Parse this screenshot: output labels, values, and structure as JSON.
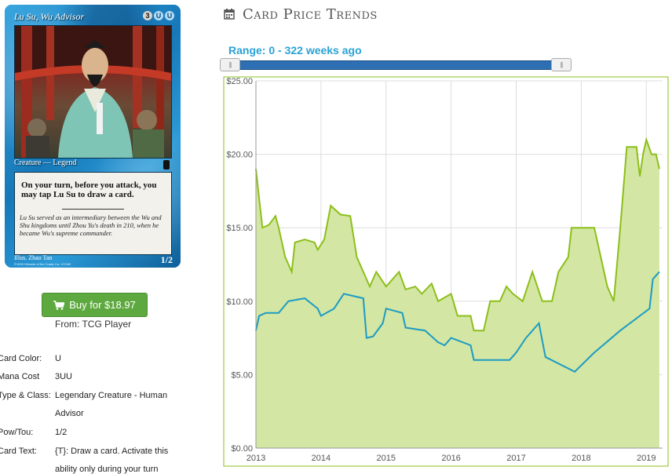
{
  "card": {
    "name": "Lu Su, Wu Advisor",
    "cost": [
      "3",
      "U",
      "U"
    ],
    "type_line": "Creature — Legend",
    "rules_text": "On your turn, before you attack, you may tap Lu Su to draw a card.",
    "flavor_text": "Lu Su served as an intermediary between the Wu and Shu kingdoms until Zhou Yu's death in 210, when he became Wu's supreme commander.",
    "illustrator": "Illus. Zhao Tan",
    "copyright": "©1999 Wizards of the Coast, Inc. 47/180",
    "power_toughness": "1/2"
  },
  "buy": {
    "label": "Buy for $18.97",
    "source": "From: TCG Player"
  },
  "details": [
    {
      "label": "Card Color:",
      "value": "U"
    },
    {
      "label": "Mana Cost",
      "value": "3UU"
    },
    {
      "label": "Type & Class:",
      "value": "Legendary Creature - Human"
    },
    {
      "label": "",
      "value": "Advisor"
    },
    {
      "label": "Pow/Tou:",
      "value": "1/2"
    },
    {
      "label": "Card Text:",
      "value": "{T}: Draw a card. Activate this"
    },
    {
      "label": "",
      "value": "ability only during your turn"
    }
  ],
  "page_title": "Card Price Trends",
  "range": {
    "label": "Range: 0 - 322 weeks ago",
    "handle_glyph": "|||"
  },
  "icons": {
    "title": "calendar-icon",
    "buy": "shopping-cart-icon"
  },
  "colors": {
    "green_line": "#8cbf1a",
    "green_fill": "#d3e6a3",
    "blue_line": "#1c9bc4",
    "button": "#5ea93f",
    "accent": "#2aa3d4"
  },
  "chart_data": {
    "type": "area",
    "x_ticks": [
      "2013",
      "2014",
      "2015",
      "2016",
      "2017",
      "2018",
      "2019"
    ],
    "y_ticks": [
      "$0.00",
      "$5.00",
      "$10.00",
      "$15.00",
      "$20.00",
      "$25.00"
    ],
    "ylim": [
      0,
      25
    ],
    "xlim": [
      2013.0,
      2019.25
    ],
    "grid": true,
    "series": [
      {
        "points": [
          [
            2013.0,
            19.0
          ],
          [
            2013.05,
            17.0
          ],
          [
            2013.1,
            15.0
          ],
          [
            2013.2,
            15.2
          ],
          [
            2013.3,
            15.8
          ],
          [
            2013.35,
            15.0
          ],
          [
            2013.45,
            13.0
          ],
          [
            2013.55,
            12.0
          ],
          [
            2013.6,
            14.0
          ],
          [
            2013.75,
            14.2
          ],
          [
            2013.9,
            14.0
          ],
          [
            2013.95,
            13.5
          ],
          [
            2014.05,
            14.2
          ],
          [
            2014.15,
            16.5
          ],
          [
            2014.3,
            15.9
          ],
          [
            2014.45,
            15.8
          ],
          [
            2014.55,
            13.0
          ],
          [
            2014.65,
            12.0
          ],
          [
            2014.75,
            11.0
          ],
          [
            2014.85,
            12.0
          ],
          [
            2015.0,
            11.0
          ],
          [
            2015.2,
            12.0
          ],
          [
            2015.3,
            10.8
          ],
          [
            2015.45,
            11.0
          ],
          [
            2015.55,
            10.5
          ],
          [
            2015.7,
            11.2
          ],
          [
            2015.8,
            10.0
          ],
          [
            2016.0,
            10.5
          ],
          [
            2016.1,
            9.0
          ],
          [
            2016.3,
            9.0
          ],
          [
            2016.35,
            8.0
          ],
          [
            2016.5,
            8.0
          ],
          [
            2016.6,
            10.0
          ],
          [
            2016.75,
            10.0
          ],
          [
            2016.85,
            11.0
          ],
          [
            2016.95,
            10.5
          ],
          [
            2017.1,
            10.0
          ],
          [
            2017.25,
            12.0
          ],
          [
            2017.4,
            10.0
          ],
          [
            2017.55,
            10.0
          ],
          [
            2017.65,
            12.0
          ],
          [
            2017.8,
            13.0
          ],
          [
            2017.85,
            15.0
          ],
          [
            2018.2,
            15.0
          ],
          [
            2018.3,
            13.0
          ],
          [
            2018.4,
            11.0
          ],
          [
            2018.5,
            10.0
          ],
          [
            2018.6,
            15.0
          ],
          [
            2018.7,
            20.5
          ],
          [
            2018.85,
            20.5
          ],
          [
            2018.9,
            18.5
          ],
          [
            2018.95,
            20.0
          ],
          [
            2019.0,
            21.0
          ],
          [
            2019.08,
            20.0
          ],
          [
            2019.15,
            20.0
          ],
          [
            2019.2,
            19.0
          ]
        ]
      },
      {
        "points": [
          [
            2013.0,
            8.0
          ],
          [
            2013.05,
            9.0
          ],
          [
            2013.15,
            9.2
          ],
          [
            2013.35,
            9.2
          ],
          [
            2013.5,
            10.0
          ],
          [
            2013.75,
            10.2
          ],
          [
            2013.95,
            9.5
          ],
          [
            2014.0,
            9.0
          ],
          [
            2014.2,
            9.5
          ],
          [
            2014.35,
            10.5
          ],
          [
            2014.65,
            10.2
          ],
          [
            2014.7,
            7.5
          ],
          [
            2014.8,
            7.6
          ],
          [
            2014.95,
            8.5
          ],
          [
            2015.0,
            9.5
          ],
          [
            2015.25,
            9.2
          ],
          [
            2015.3,
            8.2
          ],
          [
            2015.6,
            8.0
          ],
          [
            2015.8,
            7.2
          ],
          [
            2015.9,
            7.0
          ],
          [
            2016.0,
            7.5
          ],
          [
            2016.3,
            7.0
          ],
          [
            2016.35,
            6.0
          ],
          [
            2016.9,
            6.0
          ],
          [
            2017.0,
            6.5
          ],
          [
            2017.15,
            7.5
          ],
          [
            2017.35,
            8.5
          ],
          [
            2017.45,
            6.2
          ],
          [
            2017.9,
            5.2
          ],
          [
            2018.2,
            6.5
          ],
          [
            2018.6,
            8.0
          ],
          [
            2018.9,
            9.0
          ],
          [
            2019.05,
            9.5
          ],
          [
            2019.1,
            11.5
          ],
          [
            2019.2,
            12.0
          ]
        ]
      }
    ]
  }
}
